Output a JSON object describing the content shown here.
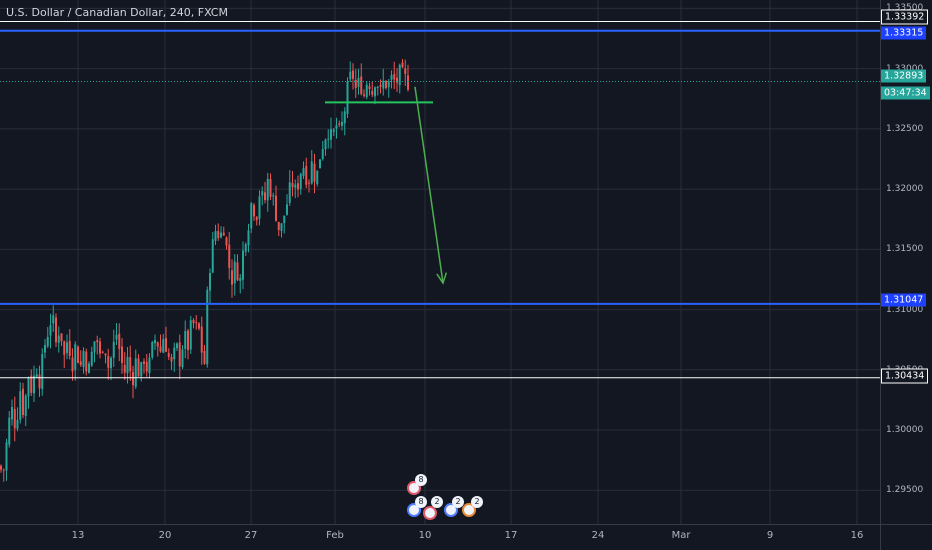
{
  "chart_title": "U.S. Dollar / Canadian Dollar, 240, FXCM",
  "colors": {
    "background": "#131722",
    "up": "#26a69a",
    "down": "#ef5350",
    "level_line": "#2962ff",
    "badge_blue": "#1e40ff",
    "current": "#26a69a",
    "trend_line": "#22c55e",
    "arrow": "#4caf50"
  },
  "price_axis": {
    "ticks": [
      "1.33500",
      "1.33000",
      "1.32500",
      "1.32000",
      "1.31500",
      "1.31000",
      "1.30500",
      "1.30000",
      "1.29500"
    ]
  },
  "time_axis": {
    "labels": [
      "13",
      "20",
      "27",
      "Feb",
      "10",
      "17",
      "24",
      "Mar",
      "9",
      "16"
    ]
  },
  "badges": {
    "top_level": "1.33392",
    "blue_level_upper": "1.33315",
    "current_price": "1.32893",
    "countdown": "03:47:34",
    "blue_level_lower": "1.31047",
    "bottom_level": "1.30434"
  },
  "events": {
    "top_count": "8",
    "row_counts": [
      "8",
      "2",
      "2",
      "2"
    ]
  },
  "chart_data": {
    "type": "candlestick",
    "title": "U.S. Dollar / Canadian Dollar, 240, FXCM",
    "symbol": "USDCAD",
    "timeframe": "240",
    "source": "FXCM",
    "ylim": [
      1.2922,
      1.3357
    ],
    "y_ticks": [
      1.335,
      1.33,
      1.325,
      1.32,
      1.315,
      1.31,
      1.305,
      1.3,
      1.295
    ],
    "x_labels": [
      "13",
      "20",
      "27",
      "Feb",
      "10",
      "17",
      "24",
      "Mar",
      "9",
      "16"
    ],
    "horizontal_levels": [
      1.33392,
      1.33315,
      1.31047,
      1.30434
    ],
    "current_price": 1.32893,
    "support_line_price": 1.3272,
    "projection_arrow": {
      "from": 1.3285,
      "to": 1.3122
    },
    "price_path": [
      [
        0,
        1.297
      ],
      [
        3,
        1.2962
      ],
      [
        7,
        1.2992
      ],
      [
        11,
        1.302
      ],
      [
        16,
        1.3002
      ],
      [
        20,
        1.3035
      ],
      [
        24,
        1.3012
      ],
      [
        28,
        1.3048
      ],
      [
        32,
        1.3032
      ],
      [
        36,
        1.3055
      ],
      [
        40,
        1.304
      ],
      [
        44,
        1.3068
      ],
      [
        48,
        1.3082
      ],
      [
        52,
        1.3096
      ],
      [
        56,
        1.3072
      ],
      [
        60,
        1.3088
      ],
      [
        64,
        1.306
      ],
      [
        68,
        1.3078
      ],
      [
        72,
        1.3054
      ],
      [
        76,
        1.3072
      ],
      [
        80,
        1.305
      ],
      [
        84,
        1.3068
      ],
      [
        88,
        1.3046
      ],
      [
        92,
        1.3064
      ],
      [
        96,
        1.308
      ],
      [
        100,
        1.306
      ],
      [
        104,
        1.3076
      ],
      [
        108,
        1.3052
      ],
      [
        112,
        1.3062
      ],
      [
        116,
        1.3082
      ],
      [
        120,
        1.3064
      ],
      [
        124,
        1.3046
      ],
      [
        128,
        1.306
      ],
      [
        132,
        1.304
      ],
      [
        136,
        1.3058
      ],
      [
        140,
        1.3044
      ],
      [
        144,
        1.306
      ],
      [
        148,
        1.3048
      ],
      [
        152,
        1.3066
      ],
      [
        156,
        1.3078
      ],
      [
        160,
        1.3064
      ],
      [
        164,
        1.308
      ],
      [
        168,
        1.3062
      ],
      [
        172,
        1.3052
      ],
      [
        176,
        1.307
      ],
      [
        180,
        1.3058
      ],
      [
        184,
        1.3078
      ],
      [
        188,
        1.307
      ],
      [
        192,
        1.309
      ],
      [
        196,
        1.3084
      ],
      [
        200,
        1.3082
      ],
      [
        204,
        1.3046
      ],
      [
        208,
        1.3125
      ],
      [
        212,
        1.315
      ],
      [
        216,
        1.3168
      ],
      [
        220,
        1.316
      ],
      [
        224,
        1.317
      ],
      [
        228,
        1.314
      ],
      [
        232,
        1.3126
      ],
      [
        236,
        1.3138
      ],
      [
        240,
        1.3122
      ],
      [
        244,
        1.3156
      ],
      [
        248,
        1.317
      ],
      [
        252,
        1.3192
      ],
      [
        256,
        1.3176
      ],
      [
        260,
        1.32
      ],
      [
        264,
        1.3186
      ],
      [
        268,
        1.3208
      ],
      [
        272,
        1.3195
      ],
      [
        276,
        1.318
      ],
      [
        280,
        1.3162
      ],
      [
        284,
        1.3178
      ],
      [
        288,
        1.3192
      ],
      [
        292,
        1.3206
      ],
      [
        296,
        1.3196
      ],
      [
        300,
        1.3214
      ],
      [
        304,
        1.322
      ],
      [
        308,
        1.3205
      ],
      [
        312,
        1.3222
      ],
      [
        316,
        1.3206
      ],
      [
        320,
        1.3228
      ],
      [
        324,
        1.3242
      ],
      [
        328,
        1.325
      ],
      [
        332,
        1.324
      ],
      [
        336,
        1.3254
      ],
      [
        340,
        1.3244
      ],
      [
        344,
        1.3262
      ],
      [
        348,
        1.3285
      ],
      [
        352,
        1.3298
      ],
      [
        356,
        1.3282
      ],
      [
        360,
        1.329
      ],
      [
        364,
        1.3278
      ],
      [
        368,
        1.3294
      ],
      [
        372,
        1.328
      ],
      [
        376,
        1.3295
      ],
      [
        380,
        1.3278
      ],
      [
        384,
        1.329
      ],
      [
        388,
        1.3286
      ],
      [
        392,
        1.3292
      ],
      [
        396,
        1.3288
      ],
      [
        400,
        1.3296
      ],
      [
        404,
        1.3292
      ],
      [
        408,
        1.3289
      ]
    ]
  }
}
